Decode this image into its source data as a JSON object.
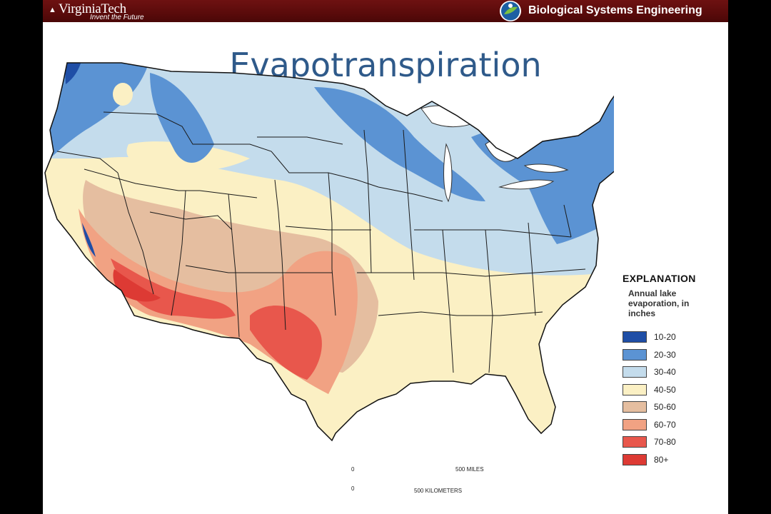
{
  "header": {
    "university": "VirginiaTech",
    "tagline": "Invent the Future",
    "department": "Biological Systems Engineering"
  },
  "slide": {
    "title": "Evapotranspiration"
  },
  "legend": {
    "title": "EXPLANATION",
    "subtitle": "Annual lake evaporation, in inches",
    "items": [
      {
        "label": "10-20",
        "color": "#1f4ea6"
      },
      {
        "label": "20-30",
        "color": "#5b93d3"
      },
      {
        "label": "30-40",
        "color": "#c4dcec"
      },
      {
        "label": "40-50",
        "color": "#fbf0c4"
      },
      {
        "label": "50-60",
        "color": "#e5bea0"
      },
      {
        "label": "60-70",
        "color": "#f1a283"
      },
      {
        "label": "70-80",
        "color": "#e8574c"
      },
      {
        "label": "80+",
        "color": "#dd3a34"
      }
    ]
  },
  "scale": {
    "miles": "500 MILES",
    "kilometers": "500 KILOMETERS",
    "zero": "0"
  }
}
